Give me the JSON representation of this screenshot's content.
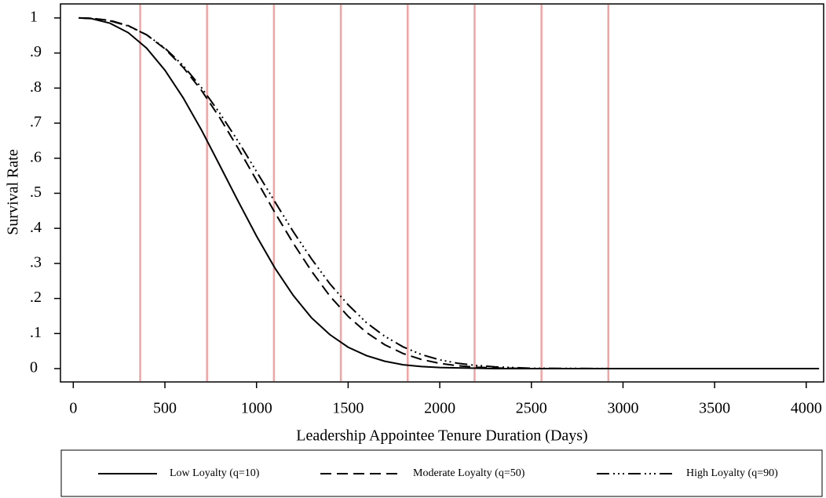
{
  "chart_data": {
    "type": "line",
    "xlabel": "Leadership Appointee Tenure Duration (Days)",
    "ylabel": "Survival Rate",
    "xlim": [
      -70,
      4095
    ],
    "ylim": [
      -0.038,
      1.04
    ],
    "xticks": [
      0,
      500,
      1000,
      1500,
      2000,
      2500,
      3000,
      3500,
      4000
    ],
    "yticks": [
      0,
      {
        "value": 0.1,
        "label": ".1"
      },
      {
        "value": 0.2,
        "label": ".2"
      },
      {
        "value": 0.3,
        "label": ".3"
      },
      {
        "value": 0.4,
        "label": ".4"
      },
      {
        "value": 0.5,
        "label": ".5"
      },
      {
        "value": 0.6,
        "label": ".6"
      },
      {
        "value": 0.7,
        "label": ".7"
      },
      {
        "value": 0.8,
        "label": ".8"
      },
      {
        "value": 0.9,
        "label": ".9"
      },
      1
    ],
    "reference_lines_x": [
      365,
      730,
      1095,
      1460,
      1825,
      2190,
      2555,
      2920
    ],
    "reference_line_color": "#f4a3a3",
    "x": [
      30,
      100,
      200,
      300,
      400,
      500,
      600,
      700,
      800,
      900,
      1000,
      1100,
      1200,
      1300,
      1400,
      1500,
      1600,
      1700,
      1800,
      1900,
      2000,
      2100,
      2200,
      2300,
      2400,
      2500,
      3000,
      3500,
      4070
    ],
    "series": [
      {
        "name": "Low Loyalty (q=10)",
        "color": "#000000",
        "line_style": "solid",
        "values": [
          1,
          0.998,
          0.985,
          0.958,
          0.914,
          0.851,
          0.772,
          0.68,
          0.579,
          0.477,
          0.378,
          0.287,
          0.209,
          0.145,
          0.097,
          0.061,
          0.037,
          0.021,
          0.011,
          0.006,
          0.003,
          0.002,
          0.001,
          0,
          0,
          0,
          0,
          0,
          0
        ]
      },
      {
        "name": "Moderate Loyalty (q=50)",
        "color": "#000000",
        "line_style": "dashed",
        "values": [
          1,
          0.999,
          0.993,
          0.978,
          0.952,
          0.912,
          0.859,
          0.793,
          0.715,
          0.628,
          0.537,
          0.445,
          0.358,
          0.278,
          0.207,
          0.149,
          0.103,
          0.068,
          0.043,
          0.026,
          0.015,
          0.008,
          0.004,
          0.002,
          0.001,
          0,
          0,
          0,
          0
        ]
      },
      {
        "name": "High Loyalty (q=90)",
        "color": "#000000",
        "line_style": "dashdot",
        "values": [
          1,
          0.999,
          0.992,
          0.977,
          0.952,
          0.914,
          0.864,
          0.801,
          0.728,
          0.648,
          0.562,
          0.476,
          0.391,
          0.313,
          0.242,
          0.182,
          0.131,
          0.092,
          0.062,
          0.04,
          0.025,
          0.015,
          0.009,
          0.005,
          0.003,
          0.001,
          0,
          0,
          0
        ]
      }
    ],
    "legend": "bottom"
  }
}
